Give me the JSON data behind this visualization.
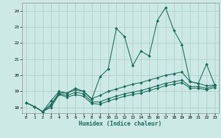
{
  "title": "",
  "xlabel": "Humidex (Indice chaleur)",
  "xlim": [
    -0.5,
    23.5
  ],
  "ylim": [
    17.65,
    24.5
  ],
  "yticks": [
    18,
    19,
    20,
    21,
    22,
    23,
    24
  ],
  "xticks": [
    0,
    1,
    2,
    3,
    4,
    5,
    6,
    7,
    8,
    9,
    10,
    11,
    12,
    13,
    14,
    15,
    16,
    17,
    18,
    19,
    20,
    21,
    22,
    23
  ],
  "bg_color": "#cce9e5",
  "grid_color": "#b0cec9",
  "line_color": "#1a6b5a",
  "lines": [
    {
      "x": [
        0,
        1,
        2,
        3,
        4,
        5,
        6,
        7,
        8,
        9,
        10,
        11,
        12,
        13,
        14,
        15,
        16,
        17,
        18,
        19,
        20,
        21,
        22,
        23
      ],
      "y": [
        18.3,
        18.05,
        17.75,
        18.4,
        19.0,
        18.9,
        19.2,
        19.0,
        18.5,
        19.9,
        20.4,
        22.9,
        22.4,
        20.6,
        21.5,
        21.2,
        23.4,
        24.2,
        22.8,
        21.9,
        19.6,
        19.5,
        20.7,
        19.4
      ]
    },
    {
      "x": [
        0,
        1,
        2,
        3,
        4,
        5,
        6,
        7,
        8,
        9,
        10,
        11,
        12,
        13,
        14,
        15,
        16,
        17,
        18,
        19,
        20,
        21,
        22,
        23
      ],
      "y": [
        18.3,
        18.05,
        17.75,
        18.2,
        18.9,
        18.9,
        19.1,
        19.0,
        18.55,
        18.75,
        19.0,
        19.15,
        19.3,
        19.45,
        19.55,
        19.7,
        19.85,
        20.0,
        20.1,
        20.2,
        19.6,
        19.5,
        19.35,
        19.4
      ]
    },
    {
      "x": [
        0,
        1,
        2,
        3,
        4,
        5,
        6,
        7,
        8,
        9,
        10,
        11,
        12,
        13,
        14,
        15,
        16,
        17,
        18,
        19,
        20,
        21,
        22,
        23
      ],
      "y": [
        18.3,
        18.05,
        17.75,
        18.1,
        18.85,
        18.75,
        18.95,
        18.85,
        18.35,
        18.35,
        18.55,
        18.7,
        18.85,
        18.95,
        19.05,
        19.2,
        19.35,
        19.5,
        19.6,
        19.7,
        19.3,
        19.3,
        19.2,
        19.35
      ]
    },
    {
      "x": [
        0,
        1,
        2,
        3,
        4,
        5,
        6,
        7,
        8,
        9,
        10,
        11,
        12,
        13,
        14,
        15,
        16,
        17,
        18,
        19,
        20,
        21,
        22,
        23
      ],
      "y": [
        18.3,
        18.05,
        17.75,
        18.0,
        18.8,
        18.65,
        18.8,
        18.7,
        18.25,
        18.2,
        18.4,
        18.55,
        18.7,
        18.8,
        18.9,
        19.05,
        19.2,
        19.35,
        19.45,
        19.55,
        19.2,
        19.2,
        19.1,
        19.25
      ]
    }
  ]
}
